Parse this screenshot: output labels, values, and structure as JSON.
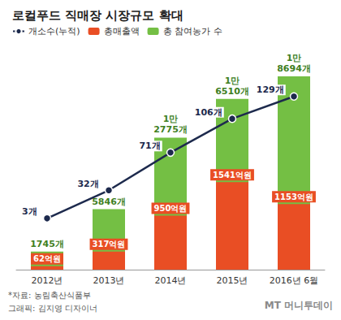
{
  "chart_data": {
    "type": "bar",
    "title": "로컬푸드 직매장 시장규모 확대",
    "categories": [
      "2012년",
      "2013년",
      "2014년",
      "2015년",
      "2016년 6월"
    ],
    "series": [
      {
        "name": "개소수(누적)",
        "type": "line",
        "color": "#1d2a4d",
        "axis": "y3",
        "marker": "circle",
        "values": [
          3,
          32,
          71,
          106,
          129
        ],
        "value_labels": [
          "3개",
          "32개",
          "71개",
          "106개",
          "129개"
        ]
      },
      {
        "name": "총매출액",
        "type": "bar",
        "color": "#e94e24",
        "axis": "y2",
        "values": [
          62,
          317,
          950,
          1541,
          1153
        ],
        "value_labels": [
          "62억원",
          "317억원",
          "950억원",
          "1541억원",
          "1153억원"
        ]
      },
      {
        "name": "총 참여농가 수",
        "type": "bar",
        "color": "#74bf44",
        "axis": "y",
        "values": [
          1745,
          5846,
          12775,
          16510,
          18694
        ],
        "value_labels": [
          "1745개",
          "5846개",
          "1만 2775개",
          "1만 6510개",
          "1만 8694개"
        ]
      }
    ],
    "ylim": [
      0,
      22000
    ],
    "y2lim": [
      0,
      4000
    ],
    "y3lim": [
      -50,
      185
    ],
    "tick_labels": "x",
    "grid": false,
    "legend": "top",
    "data_labels": true,
    "stacked": false,
    "annotations": [
      "*자료: 농림축산식품부",
      "그래픽: 김지영 디자이너",
      "MT 머니투데이"
    ]
  }
}
